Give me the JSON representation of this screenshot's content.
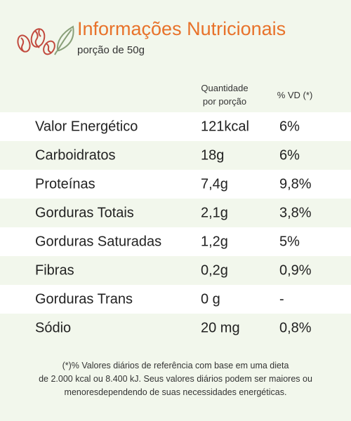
{
  "header": {
    "title": "Informações Nutricionais",
    "subtitle": "porção de 50g"
  },
  "columns": {
    "quantity_line1": "Quantidade",
    "quantity_line2": "por porção",
    "daily_value": "% VD (*)"
  },
  "rows": [
    {
      "name": "Valor Energético",
      "quantity": "121kcal",
      "daily_value": "6%"
    },
    {
      "name": "Carboidratos",
      "quantity": "18g",
      "daily_value": "6%"
    },
    {
      "name": "Proteínas",
      "quantity": "7,4g",
      "daily_value": "9,8%"
    },
    {
      "name": "Gorduras Totais",
      "quantity": "2,1g",
      "daily_value": "3,8%"
    },
    {
      "name": "Gorduras Saturadas",
      "quantity": "1,2g",
      "daily_value": "5%"
    },
    {
      "name": "Fibras",
      "quantity": "0,2g",
      "daily_value": "0,9%"
    },
    {
      "name": "Gorduras Trans",
      "quantity": "0 g",
      "daily_value": "-"
    },
    {
      "name": "Sódio",
      "quantity": "20 mg",
      "daily_value": "0,8%"
    }
  ],
  "footnote": {
    "line1": "(*)% Valores diários de referência com base em uma dieta",
    "line2": "de 2.000 kcal ou 8.400 kJ. Seus valores diários podem ser maiores ou",
    "line3": "menoresdependendo de suas necessidades energéticas."
  },
  "colors": {
    "accent": "#e8722a",
    "background": "#f2f7ec",
    "row_alt": "#ffffff",
    "logo_red": "#c24a3e",
    "leaf_green": "#8aa07a"
  },
  "icons": {
    "logo": "nuts-and-leaf-icon"
  }
}
